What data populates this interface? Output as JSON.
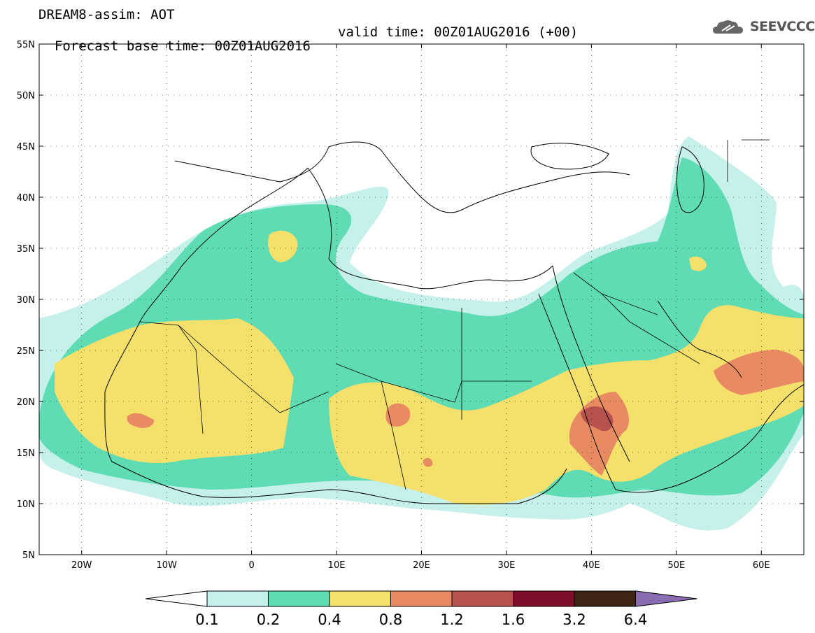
{
  "header": {
    "title": "DREAM8-assim: AOT",
    "forecast_base": "Forecast base time: 00Z01AUG2016",
    "valid_time": "valid time: 00Z01AUG2016 (+00)"
  },
  "logo": {
    "text": "SEEVCCC",
    "icon": "cloud-icon",
    "color": "#666666"
  },
  "axes": {
    "lat_labels": [
      "55N",
      "50N",
      "45N",
      "40N",
      "35N",
      "30N",
      "25N",
      "20N",
      "15N",
      "10N",
      "5N"
    ],
    "lon_labels": [
      "20W",
      "10W",
      "0",
      "10E",
      "20E",
      "30E",
      "40E",
      "50E",
      "60E"
    ],
    "lat_range": [
      5,
      55
    ],
    "lon_range": [
      -25,
      65
    ],
    "grid": "dotted"
  },
  "colorbar": {
    "labels": [
      "0.1",
      "0.2",
      "0.4",
      "0.8",
      "1.2",
      "1.6",
      "3.2",
      "6.4"
    ],
    "colors": [
      "#ffffff",
      "#c6f0ea",
      "#5fdcb3",
      "#f4e06a",
      "#e88b63",
      "#b8524c",
      "#7e0e2a",
      "#3d2414",
      "#8a6cb2"
    ]
  }
}
